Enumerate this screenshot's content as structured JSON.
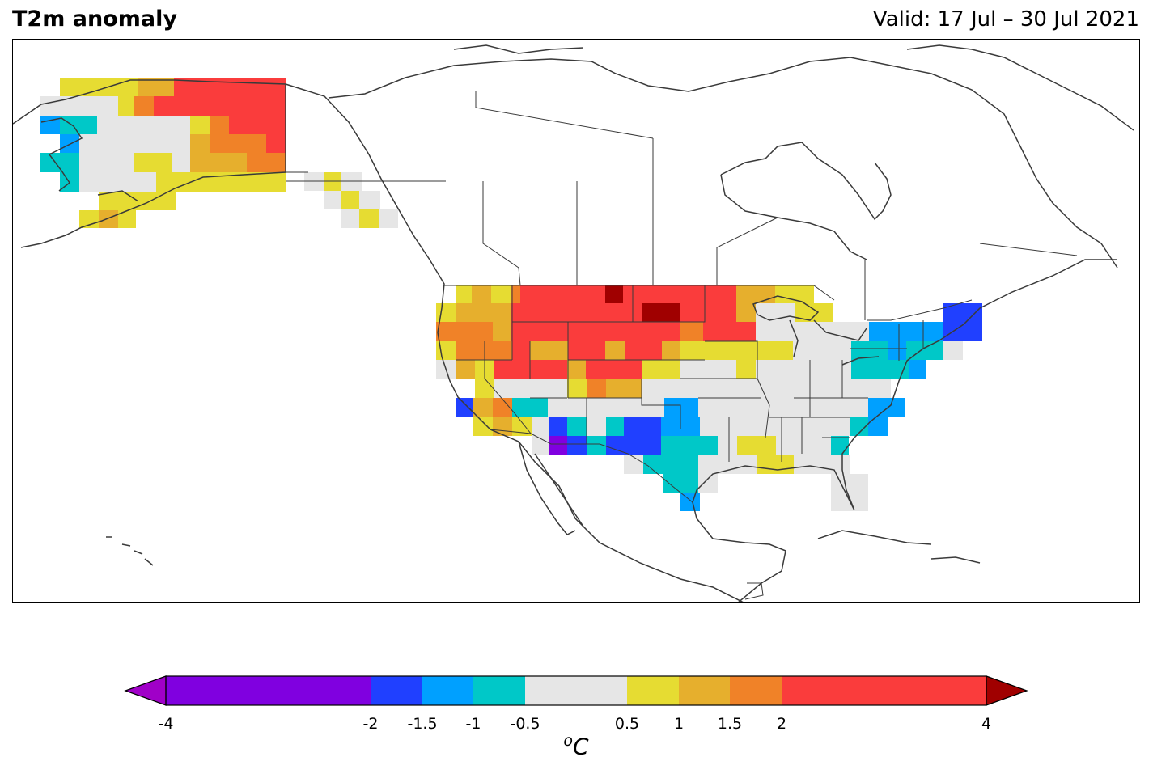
{
  "title": "T2m anomaly",
  "valid": "Valid: 17 Jul – 30 Jul 2021",
  "colorbar": {
    "unit_sup": "o",
    "unit": "C",
    "ticks": [
      {
        "label": "-4",
        "value": -4
      },
      {
        "label": "-2",
        "value": -2
      },
      {
        "label": "-1.5",
        "value": -1.5
      },
      {
        "label": "-1",
        "value": -1
      },
      {
        "label": "-0.5",
        "value": -0.5
      },
      {
        "label": "0.5",
        "value": 0.5
      },
      {
        "label": "1",
        "value": 1
      },
      {
        "label": "1.5",
        "value": 1.5
      },
      {
        "label": "2",
        "value": 2
      },
      {
        "label": "4",
        "value": 4
      }
    ],
    "bins": [
      {
        "from": -4,
        "to": -2,
        "color": "#8000e0"
      },
      {
        "from": -2,
        "to": -1.5,
        "color": "#2040ff"
      },
      {
        "from": -1.5,
        "to": -1,
        "color": "#00a0ff"
      },
      {
        "from": -1,
        "to": -0.5,
        "color": "#00c8c8"
      },
      {
        "from": -0.5,
        "to": 0.5,
        "color": "#e6e6e6"
      },
      {
        "from": 0.5,
        "to": 1,
        "color": "#e6dc32"
      },
      {
        "from": 1,
        "to": 1.5,
        "color": "#e6af2d"
      },
      {
        "from": 1.5,
        "to": 2,
        "color": "#f08228"
      },
      {
        "from": 2,
        "to": 4,
        "color": "#fa3c3c"
      }
    ],
    "under_color": "#a000c8",
    "over_color": "#a00000"
  }
}
